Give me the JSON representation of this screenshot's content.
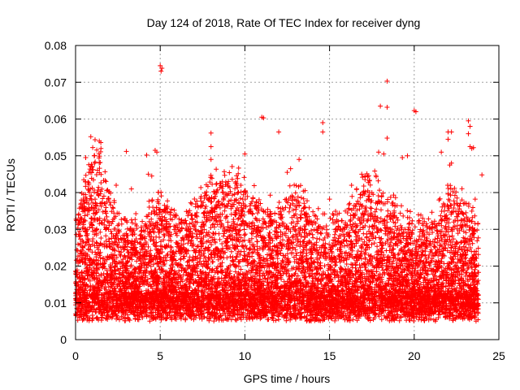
{
  "chart_data": {
    "type": "scatter",
    "title": "Day 124 of 2018, Rate Of TEC Index for receiver dyng",
    "xlabel": "GPS time / hours",
    "ylabel": "ROTI / TECUs",
    "xlim": [
      0,
      25
    ],
    "ylim": [
      0,
      0.08
    ],
    "x_ticks": [
      0,
      5,
      10,
      15,
      20,
      25
    ],
    "x_tick_labels": [
      "0",
      "5",
      "10",
      "15",
      "20",
      "25"
    ],
    "y_ticks": [
      0,
      0.01,
      0.02,
      0.03,
      0.04,
      0.05,
      0.06,
      0.07,
      0.08
    ],
    "y_tick_labels": [
      "0",
      "0.01",
      "0.02",
      "0.03",
      "0.04",
      "0.05",
      "0.06",
      "0.07",
      "0.08"
    ],
    "grid": true,
    "marker": "+",
    "marker_color": "#ff0000",
    "x_data_range": [
      0,
      23.8
    ],
    "series": [
      {
        "name": "ROTI",
        "description_points": [
          [
            5.0,
            0.0745
          ],
          [
            5.1,
            0.0738
          ],
          [
            5.05,
            0.073
          ],
          [
            18.4,
            0.0703
          ],
          [
            18.0,
            0.0635
          ],
          [
            18.4,
            0.0632
          ],
          [
            20.0,
            0.0623
          ],
          [
            20.1,
            0.062
          ],
          [
            11.0,
            0.0605
          ],
          [
            11.1,
            0.0603
          ],
          [
            23.2,
            0.0595
          ],
          [
            14.6,
            0.059
          ],
          [
            23.3,
            0.058
          ],
          [
            12.0,
            0.0565
          ],
          [
            14.6,
            0.0565
          ],
          [
            8.0,
            0.0562
          ],
          [
            22.0,
            0.0565
          ],
          [
            22.2,
            0.0565
          ],
          [
            23.2,
            0.056
          ],
          [
            0.9,
            0.0552
          ],
          [
            18.4,
            0.0548
          ],
          [
            1.4,
            0.054
          ],
          [
            22.0,
            0.0545
          ],
          [
            4.7,
            0.0515
          ],
          [
            4.8,
            0.051
          ],
          [
            8.0,
            0.0525
          ],
          [
            1.5,
            0.052
          ],
          [
            3.0,
            0.0512
          ],
          [
            23.3,
            0.0525
          ],
          [
            23.4,
            0.052
          ],
          [
            23.5,
            0.0522
          ],
          [
            10.0,
            0.0505
          ],
          [
            17.9,
            0.051
          ],
          [
            18.2,
            0.0505
          ],
          [
            19.6,
            0.05
          ],
          [
            21.6,
            0.051
          ],
          [
            0.6,
            0.0495
          ],
          [
            8.0,
            0.049
          ],
          [
            13.2,
            0.049
          ],
          [
            19.3,
            0.0495
          ],
          [
            1.1,
            0.05
          ],
          [
            4.2,
            0.0502
          ],
          [
            4.3,
            0.045
          ],
          [
            4.5,
            0.0445
          ],
          [
            12.7,
            0.0465
          ],
          [
            12.5,
            0.0455
          ],
          [
            16.9,
            0.045
          ],
          [
            17.1,
            0.0445
          ],
          [
            24.0,
            0.0448
          ],
          [
            22.1,
            0.0475
          ],
          [
            22.2,
            0.048
          ],
          [
            9.5,
            0.042
          ],
          [
            15.0,
            0.0382
          ],
          [
            17.5,
            0.04
          ],
          [
            2.4,
            0.042
          ],
          [
            3.3,
            0.041
          ],
          [
            6.8,
            0.0372
          ],
          [
            16.3,
            0.042
          ],
          [
            16.6,
            0.041
          ],
          [
            23.6,
            0.0382
          ]
        ]
      }
    ]
  }
}
